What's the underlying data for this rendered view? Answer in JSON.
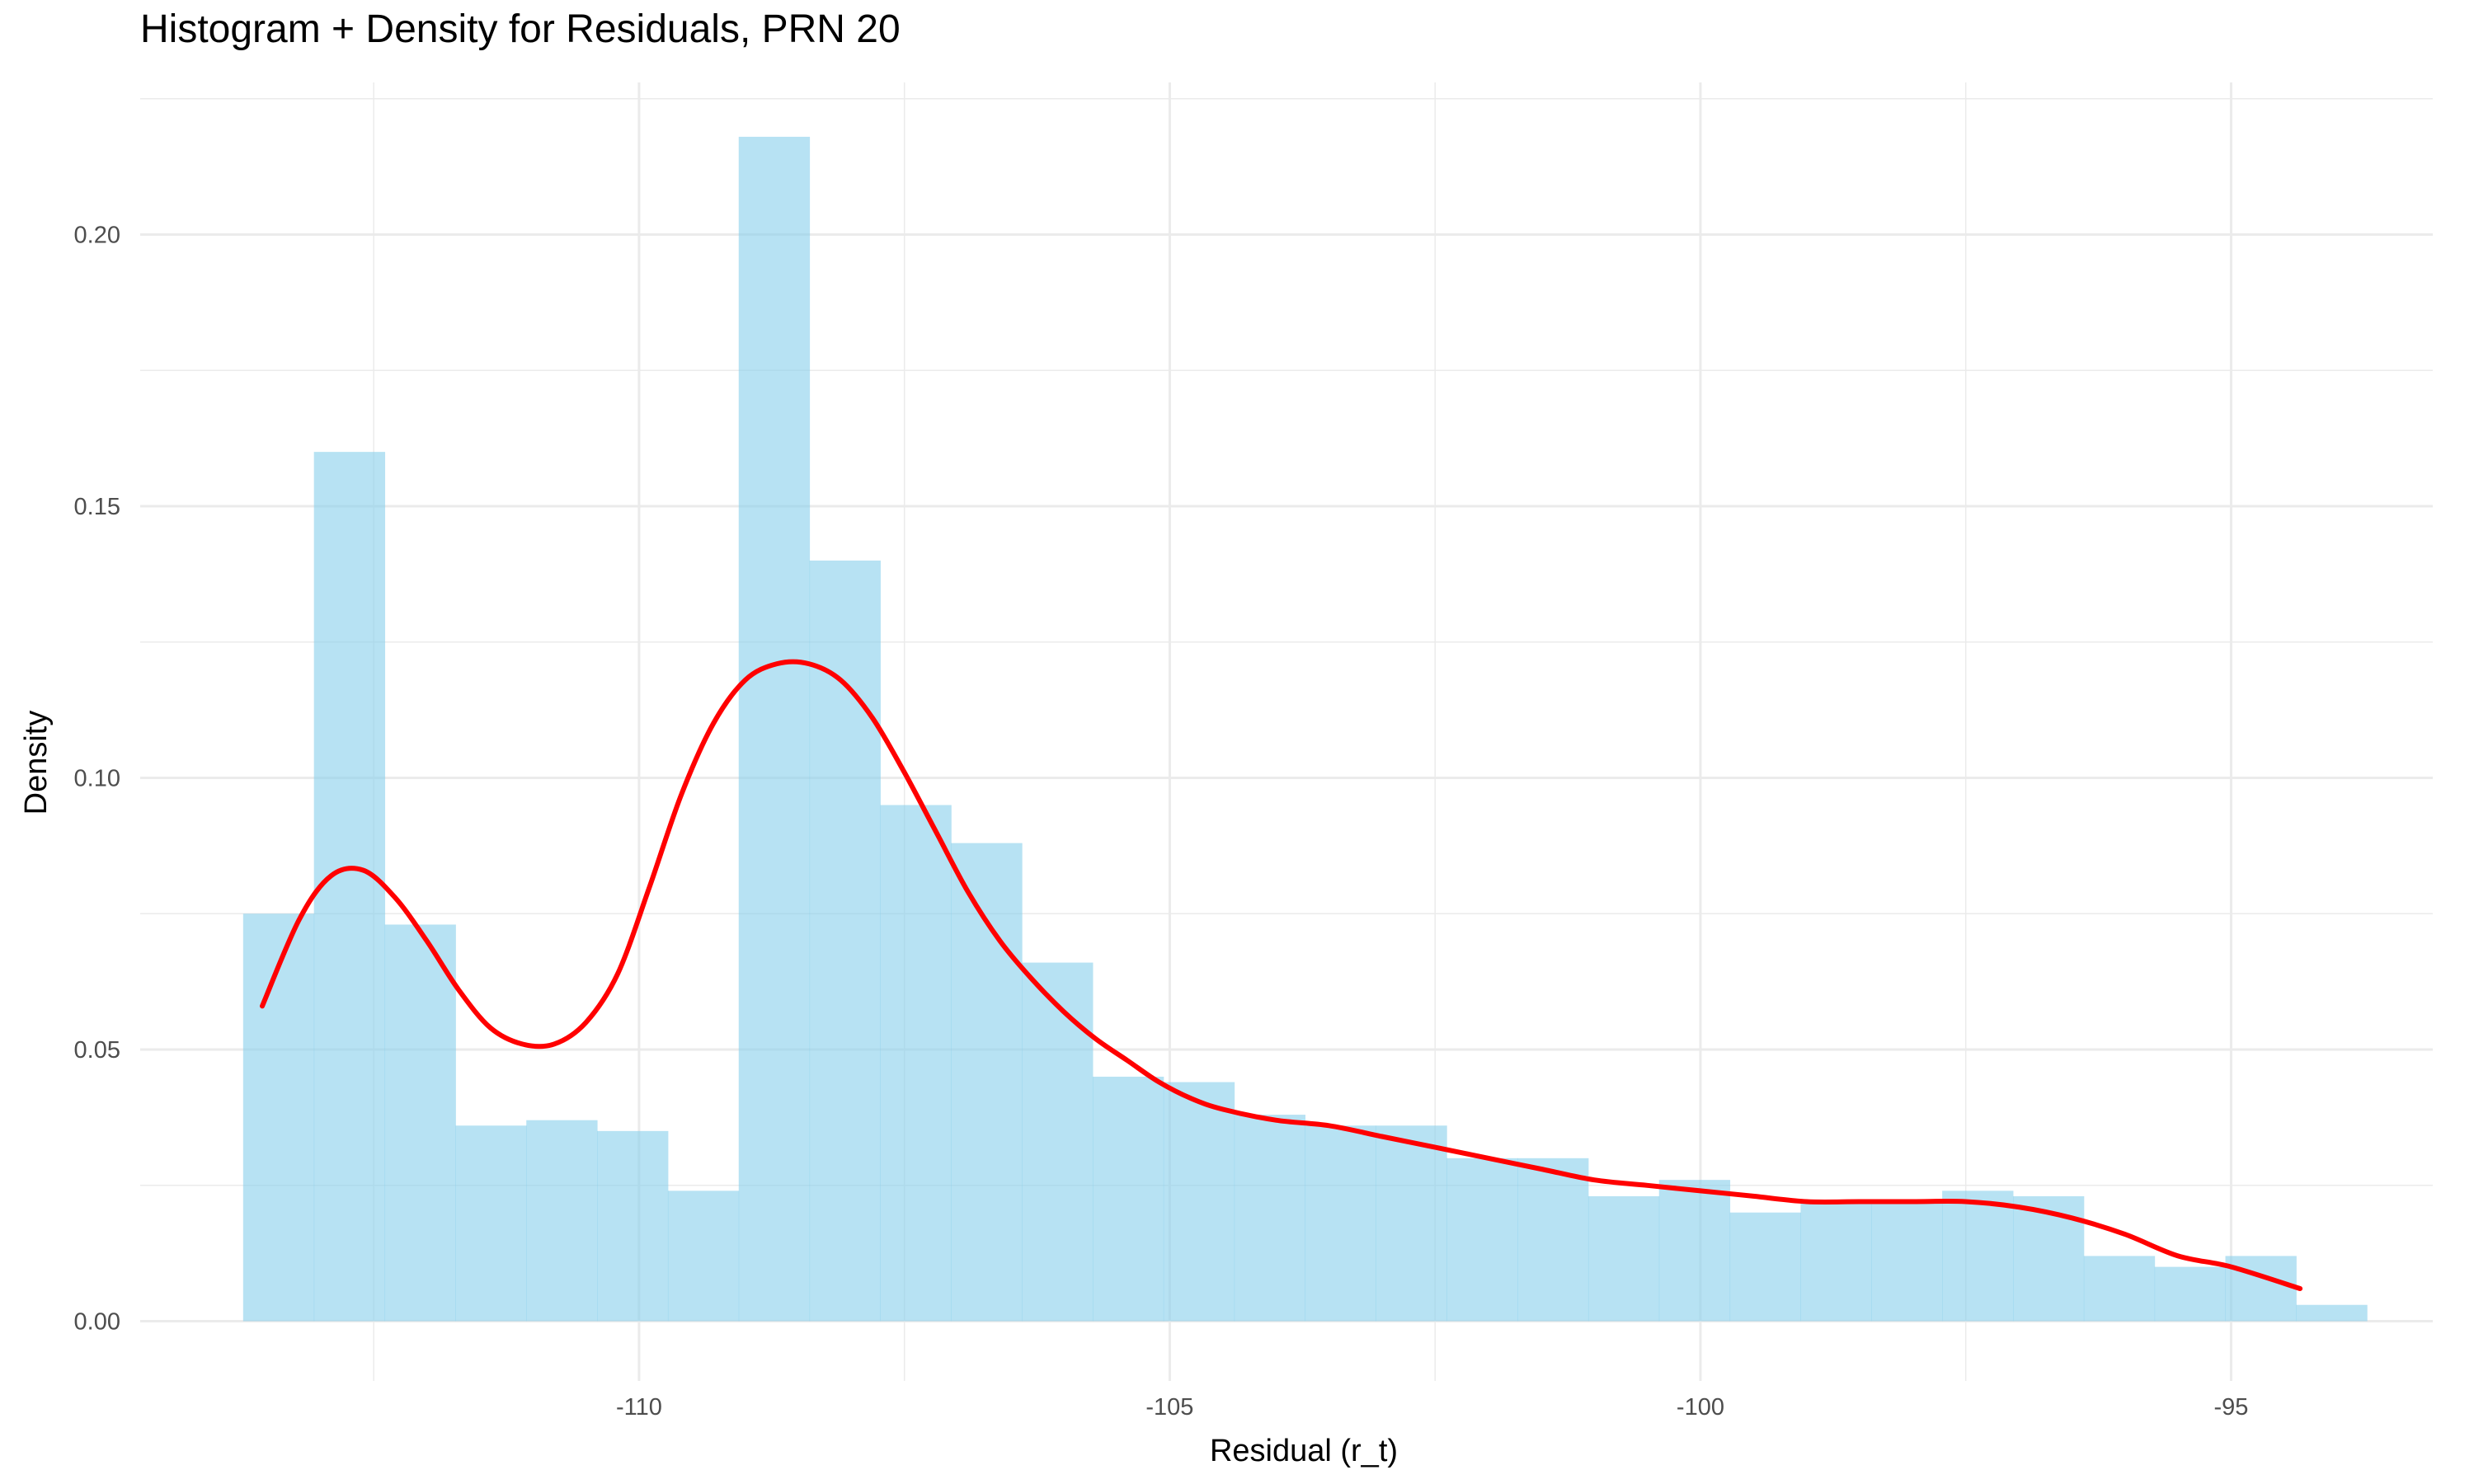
{
  "chart_data": {
    "type": "histogram",
    "title": "Histogram + Density for Residuals, PRN 20",
    "xlabel": "Residual (r_t)",
    "ylabel": "Density",
    "xlim": [
      -114.7,
      -93.1
    ],
    "ylim": [
      -0.011,
      0.228
    ],
    "x_ticks": [
      -110,
      -105,
      -100,
      -95
    ],
    "x_tick_labels": [
      "-110",
      "-105",
      "-100",
      "-95"
    ],
    "x_minor_ticks": [
      -112.5,
      -107.5,
      -102.5,
      -97.5
    ],
    "y_ticks": [
      0.0,
      0.05,
      0.1,
      0.15,
      0.2
    ],
    "y_tick_labels": [
      "0.00",
      "0.05",
      "0.10",
      "0.15",
      "0.20"
    ],
    "y_minor_ticks": [
      0.025,
      0.075,
      0.125,
      0.175,
      0.225
    ],
    "grid": true,
    "bins": {
      "start": -113.73,
      "width": 0.667,
      "values": [
        0.075,
        0.16,
        0.073,
        0.036,
        0.037,
        0.035,
        0.024,
        0.218,
        0.14,
        0.095,
        0.088,
        0.066,
        0.045,
        0.044,
        0.038,
        0.036,
        0.036,
        0.03,
        0.03,
        0.023,
        0.026,
        0.02,
        0.022,
        0.022,
        0.024,
        0.023,
        0.012,
        0.01,
        0.012,
        0.003
      ]
    },
    "density": {
      "name": "density",
      "x": [
        -113.55,
        -113.2,
        -112.9,
        -112.6,
        -112.3,
        -112.0,
        -111.7,
        -111.4,
        -111.1,
        -110.8,
        -110.5,
        -110.2,
        -109.9,
        -109.6,
        -109.3,
        -109.0,
        -108.7,
        -108.4,
        -108.1,
        -107.8,
        -107.5,
        -107.2,
        -106.9,
        -106.6,
        -106.3,
        -106.0,
        -105.7,
        -105.4,
        -105.1,
        -104.8,
        -104.5,
        -104.0,
        -103.5,
        -103.0,
        -102.5,
        -102.0,
        -101.5,
        -101.0,
        -100.5,
        -100.0,
        -99.5,
        -99.0,
        -98.5,
        -98.0,
        -97.5,
        -97.0,
        -96.5,
        -96.0,
        -95.5,
        -95.0,
        -94.35
      ],
      "y": [
        0.058,
        0.074,
        0.082,
        0.083,
        0.078,
        0.07,
        0.061,
        0.054,
        0.051,
        0.051,
        0.055,
        0.064,
        0.08,
        0.097,
        0.11,
        0.118,
        0.121,
        0.121,
        0.118,
        0.111,
        0.101,
        0.09,
        0.079,
        0.07,
        0.063,
        0.057,
        0.052,
        0.048,
        0.044,
        0.041,
        0.039,
        0.037,
        0.036,
        0.034,
        0.032,
        0.03,
        0.028,
        0.026,
        0.025,
        0.024,
        0.023,
        0.022,
        0.022,
        0.022,
        0.022,
        0.021,
        0.019,
        0.016,
        0.012,
        0.01,
        0.006
      ]
    },
    "colors": {
      "bars": "#87ceeb",
      "density": "#ff0000",
      "grid": "#ebebeb",
      "tick_text": "#4d4d4d"
    }
  }
}
